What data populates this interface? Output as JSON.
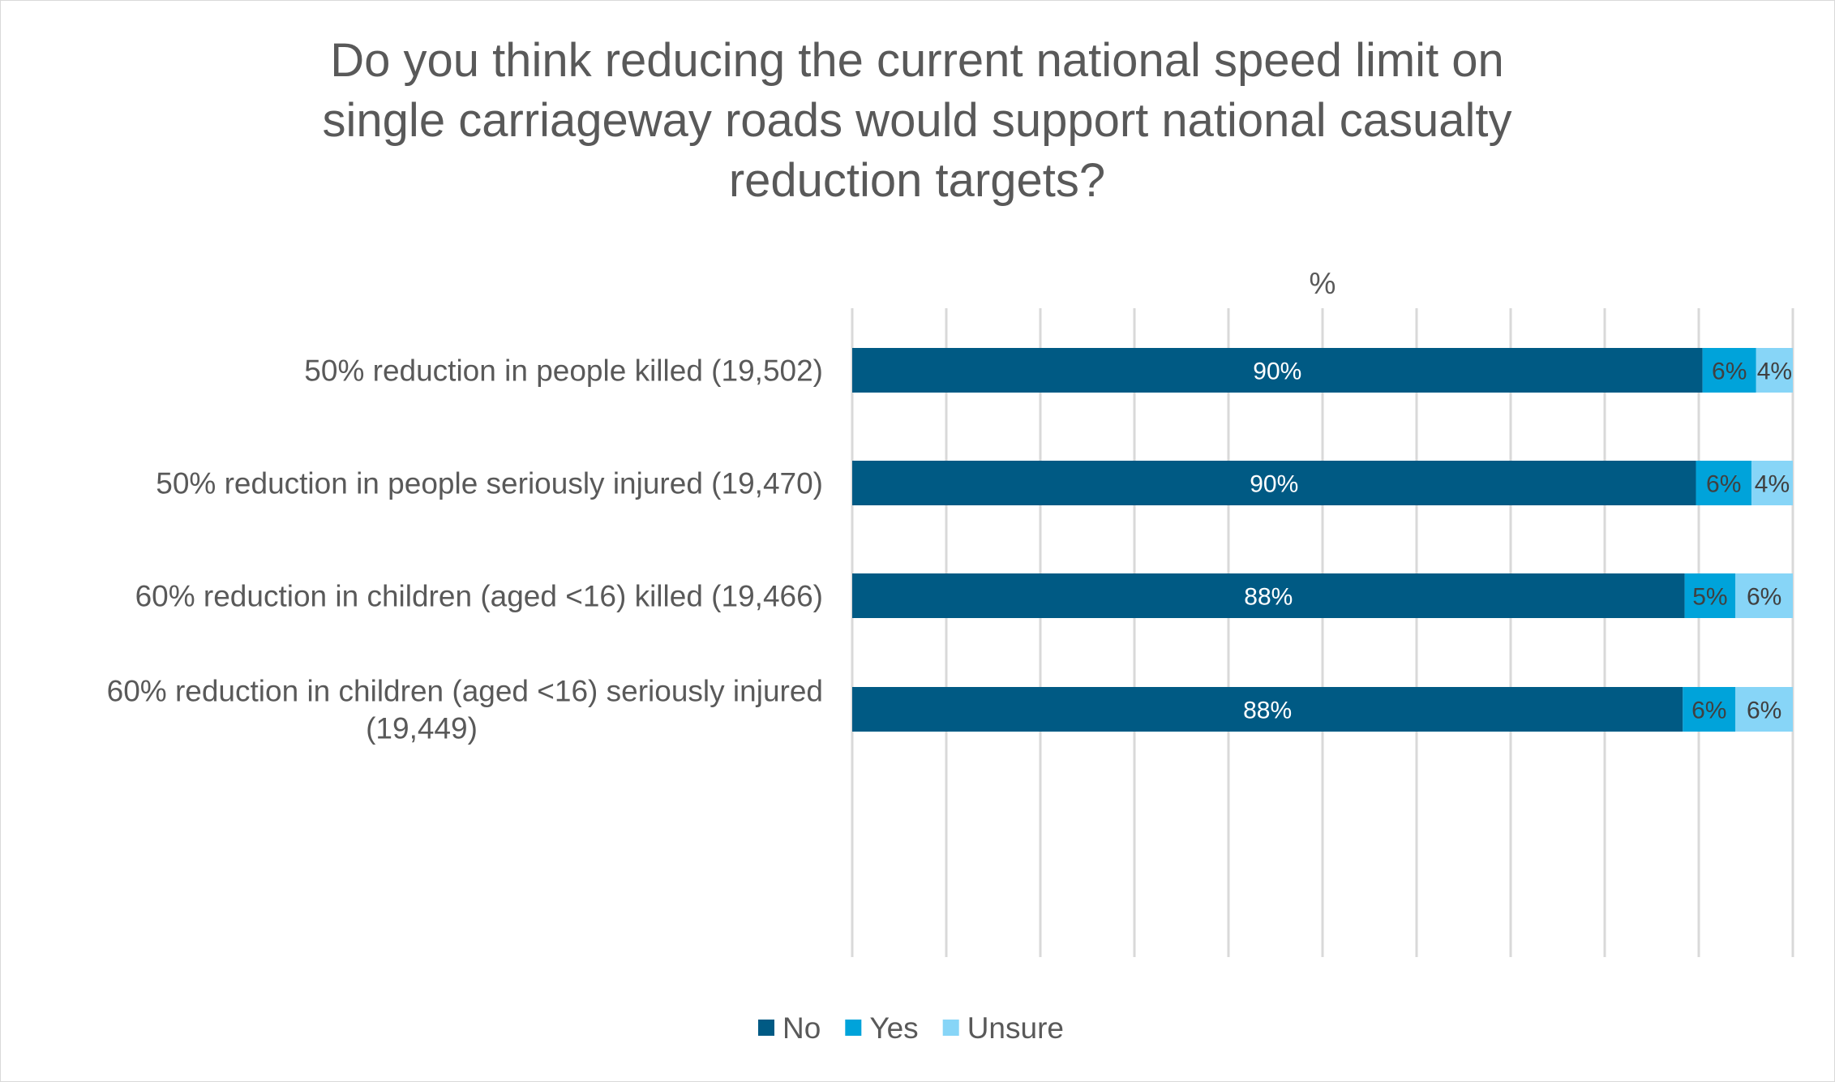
{
  "chart_data": {
    "type": "bar",
    "orientation": "horizontal",
    "stacked": true,
    "title": "Do you think reducing the current national speed limit on single carriageway roads would support national casualty reduction targets?",
    "title_lines": [
      "Do you think reducing the current national speed limit on",
      "single carriageway roads would support national casualty",
      "reduction targets?"
    ],
    "xlabel": "%",
    "xlim": [
      0,
      100
    ],
    "grid": true,
    "legend_position": "bottom",
    "categories": [
      [
        "50% reduction in people killed (19,502)"
      ],
      [
        "50% reduction in people seriously injured (19,470)"
      ],
      [
        "60% reduction in children (aged <16) killed (19,466)"
      ],
      [
        "60% reduction in children (aged <16) seriously injured",
        "(19,449)"
      ]
    ],
    "series": [
      {
        "name": "No",
        "color": "#005A84",
        "values": [
          90.4,
          89.7,
          88.5,
          88.3
        ],
        "labels": [
          "90%",
          "90%",
          "88%",
          "88%"
        ]
      },
      {
        "name": "Yes",
        "color": "#00A3DA",
        "values": [
          5.7,
          5.9,
          5.4,
          5.6
        ],
        "labels": [
          "6%",
          "6%",
          "5%",
          "6%"
        ]
      },
      {
        "name": "Unsure",
        "color": "#87D5F7",
        "values": [
          3.9,
          4.4,
          6.1,
          6.1
        ],
        "labels": [
          "4%",
          "4%",
          "6%",
          "6%"
        ]
      }
    ]
  }
}
